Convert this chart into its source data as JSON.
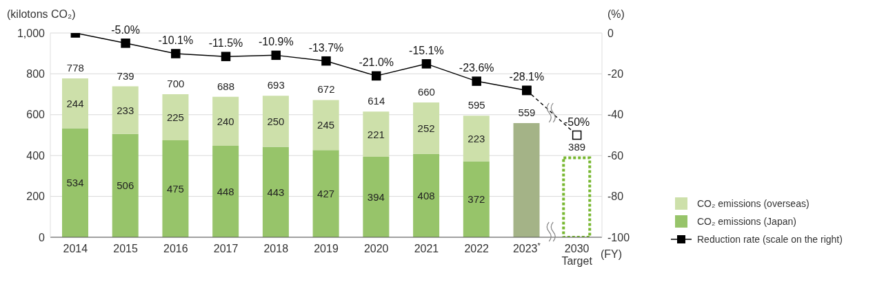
{
  "chart_data": {
    "type": "bar",
    "stacked": true,
    "xlabel": "(FY)",
    "ylabel": "(kilotons CO₂)",
    "y2label": "(%)",
    "categories": [
      "2014",
      "2015",
      "2016",
      "2017",
      "2018",
      "2019",
      "2020",
      "2021",
      "2022",
      "2023$^{*}$",
      "2030\nTarget"
    ],
    "series": [
      {
        "name": "CO₂ emissions (Japan)",
        "color": "#97c46a",
        "values": [
          534,
          506,
          475,
          448,
          443,
          427,
          394,
          408,
          372,
          null,
          null
        ],
        "value_labels": [
          "534",
          "506",
          "475",
          "448",
          "443",
          "427",
          "394",
          "408",
          "372",
          null,
          null
        ]
      },
      {
        "name": "CO₂ emissions (overseas)",
        "color": "#cde0aa",
        "values": [
          244,
          233,
          225,
          240,
          250,
          245,
          221,
          252,
          223,
          null,
          null
        ],
        "value_labels": [
          "244",
          "233",
          "225",
          "240",
          "250",
          "245",
          "221",
          "252",
          "223",
          null,
          null
        ]
      },
      {
        "color": "#a4b387",
        "values": [
          null,
          null,
          null,
          null,
          null,
          null,
          null,
          null,
          null,
          559,
          null
        ]
      },
      {
        "color": "#77b72f",
        "line_style": "dotted",
        "values": [
          null,
          null,
          null,
          null,
          null,
          null,
          null,
          null,
          null,
          null,
          389
        ]
      },
      {
        "type": "line",
        "axis": "y2",
        "color": "#000000",
        "line_style": "dashed",
        "values": [
          null,
          null,
          null,
          null,
          null,
          null,
          null,
          null,
          null,
          -28.1,
          -50
        ],
        "value_labels": [
          null,
          null,
          null,
          null,
          null,
          null,
          null,
          null,
          null,
          null,
          "-50%"
        ]
      },
      {
        "type": "line",
        "axis": "y2",
        "name": "Reduction rate (scale on the right)",
        "color": "#000000",
        "line_style": "solid",
        "values": [
          0,
          -5.0,
          -10.1,
          -11.5,
          -10.9,
          -13.7,
          -21.0,
          -15.1,
          -23.6,
          -28.1,
          null
        ],
        "value_labels": [
          null,
          "-5.0%",
          "-10.1%",
          "-11.5%",
          "-10.9%",
          "-13.7%",
          "-21.0%",
          "-15.1%",
          "-23.6%",
          "-28.1%",
          null
        ]
      }
    ],
    "totals": [
      "778",
      "739",
      "700",
      "688",
      "693",
      "672",
      "614",
      "660",
      "595",
      "559",
      "389"
    ],
    "ylim": [
      0,
      1000
    ],
    "yticks": [
      0,
      200,
      400,
      600,
      800,
      {
        "value": 1000,
        "label": "1,000"
      }
    ],
    "y2lim": [
      -100,
      0
    ],
    "y2ticks": [
      -100,
      -80,
      -60,
      -40,
      -20,
      0
    ],
    "grid": "y",
    "legend": "right",
    "marker": "square"
  }
}
